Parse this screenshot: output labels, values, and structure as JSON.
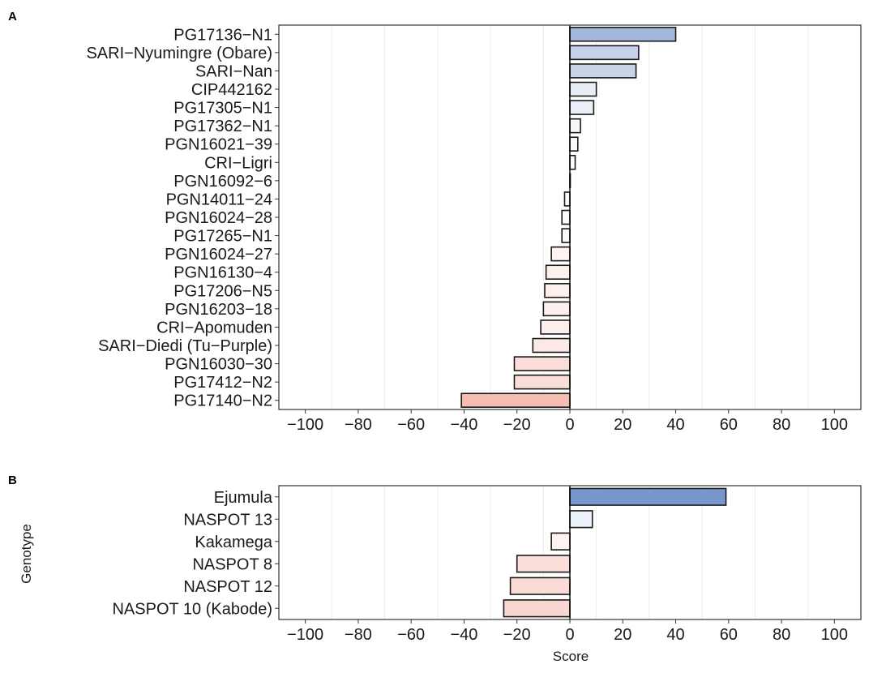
{
  "figure": {
    "ylabel": "Genotype",
    "xlabel": "Score",
    "xlim": [
      -110,
      110
    ],
    "xticks": [
      -100,
      -80,
      -60,
      -40,
      -20,
      0,
      20,
      40,
      60,
      80,
      100
    ],
    "colors": {
      "negative_max": "#f2a092",
      "positive_max": "#7897cc",
      "neutral": "#ffffff",
      "bar_stroke": "#1a1a1a",
      "grid": "#ebebeb",
      "zero_line": "#000000",
      "panel_border": "#333333"
    }
  },
  "chart_data": [
    {
      "panel": "A",
      "type": "bar",
      "orientation": "horizontal",
      "xlabel": "",
      "ylabel": "Genotype",
      "xlim": [
        -110,
        110
      ],
      "categories": [
        "PG17136−N1",
        "SARI−Nyumingre (Obare)",
        "SARI−Nan",
        "CIP442162",
        "PG17305−N1",
        "PG17362−N1",
        "PGN16021−39",
        "CRI−Ligri",
        "PGN16092−6",
        "PGN14011−24",
        "PGN16024−28",
        "PG17265−N1",
        "PGN16024−27",
        "PGN16130−4",
        "PG17206−N5",
        "PGN16203−18",
        "CRI−Apomuden",
        "SARI−Diedi (Tu−Purple)",
        "PGN16030−30",
        "PG17412−N2",
        "PG17140−N2"
      ],
      "values": [
        40,
        26,
        25,
        10,
        9,
        4,
        3,
        2,
        0,
        -2,
        -3,
        -3,
        -7,
        -9,
        -9.5,
        -10,
        -11,
        -14,
        -21,
        -21,
        -41
      ]
    },
    {
      "panel": "B",
      "type": "bar",
      "orientation": "horizontal",
      "xlabel": "Score",
      "ylabel": "Genotype",
      "xlim": [
        -110,
        110
      ],
      "categories": [
        "Ejumula",
        "NASPOT 13",
        "Kakamega",
        "NASPOT 8",
        "NASPOT 12",
        "NASPOT 10 (Kabode)"
      ],
      "values": [
        59,
        8.5,
        -7,
        -20,
        -22.5,
        -25
      ]
    }
  ]
}
